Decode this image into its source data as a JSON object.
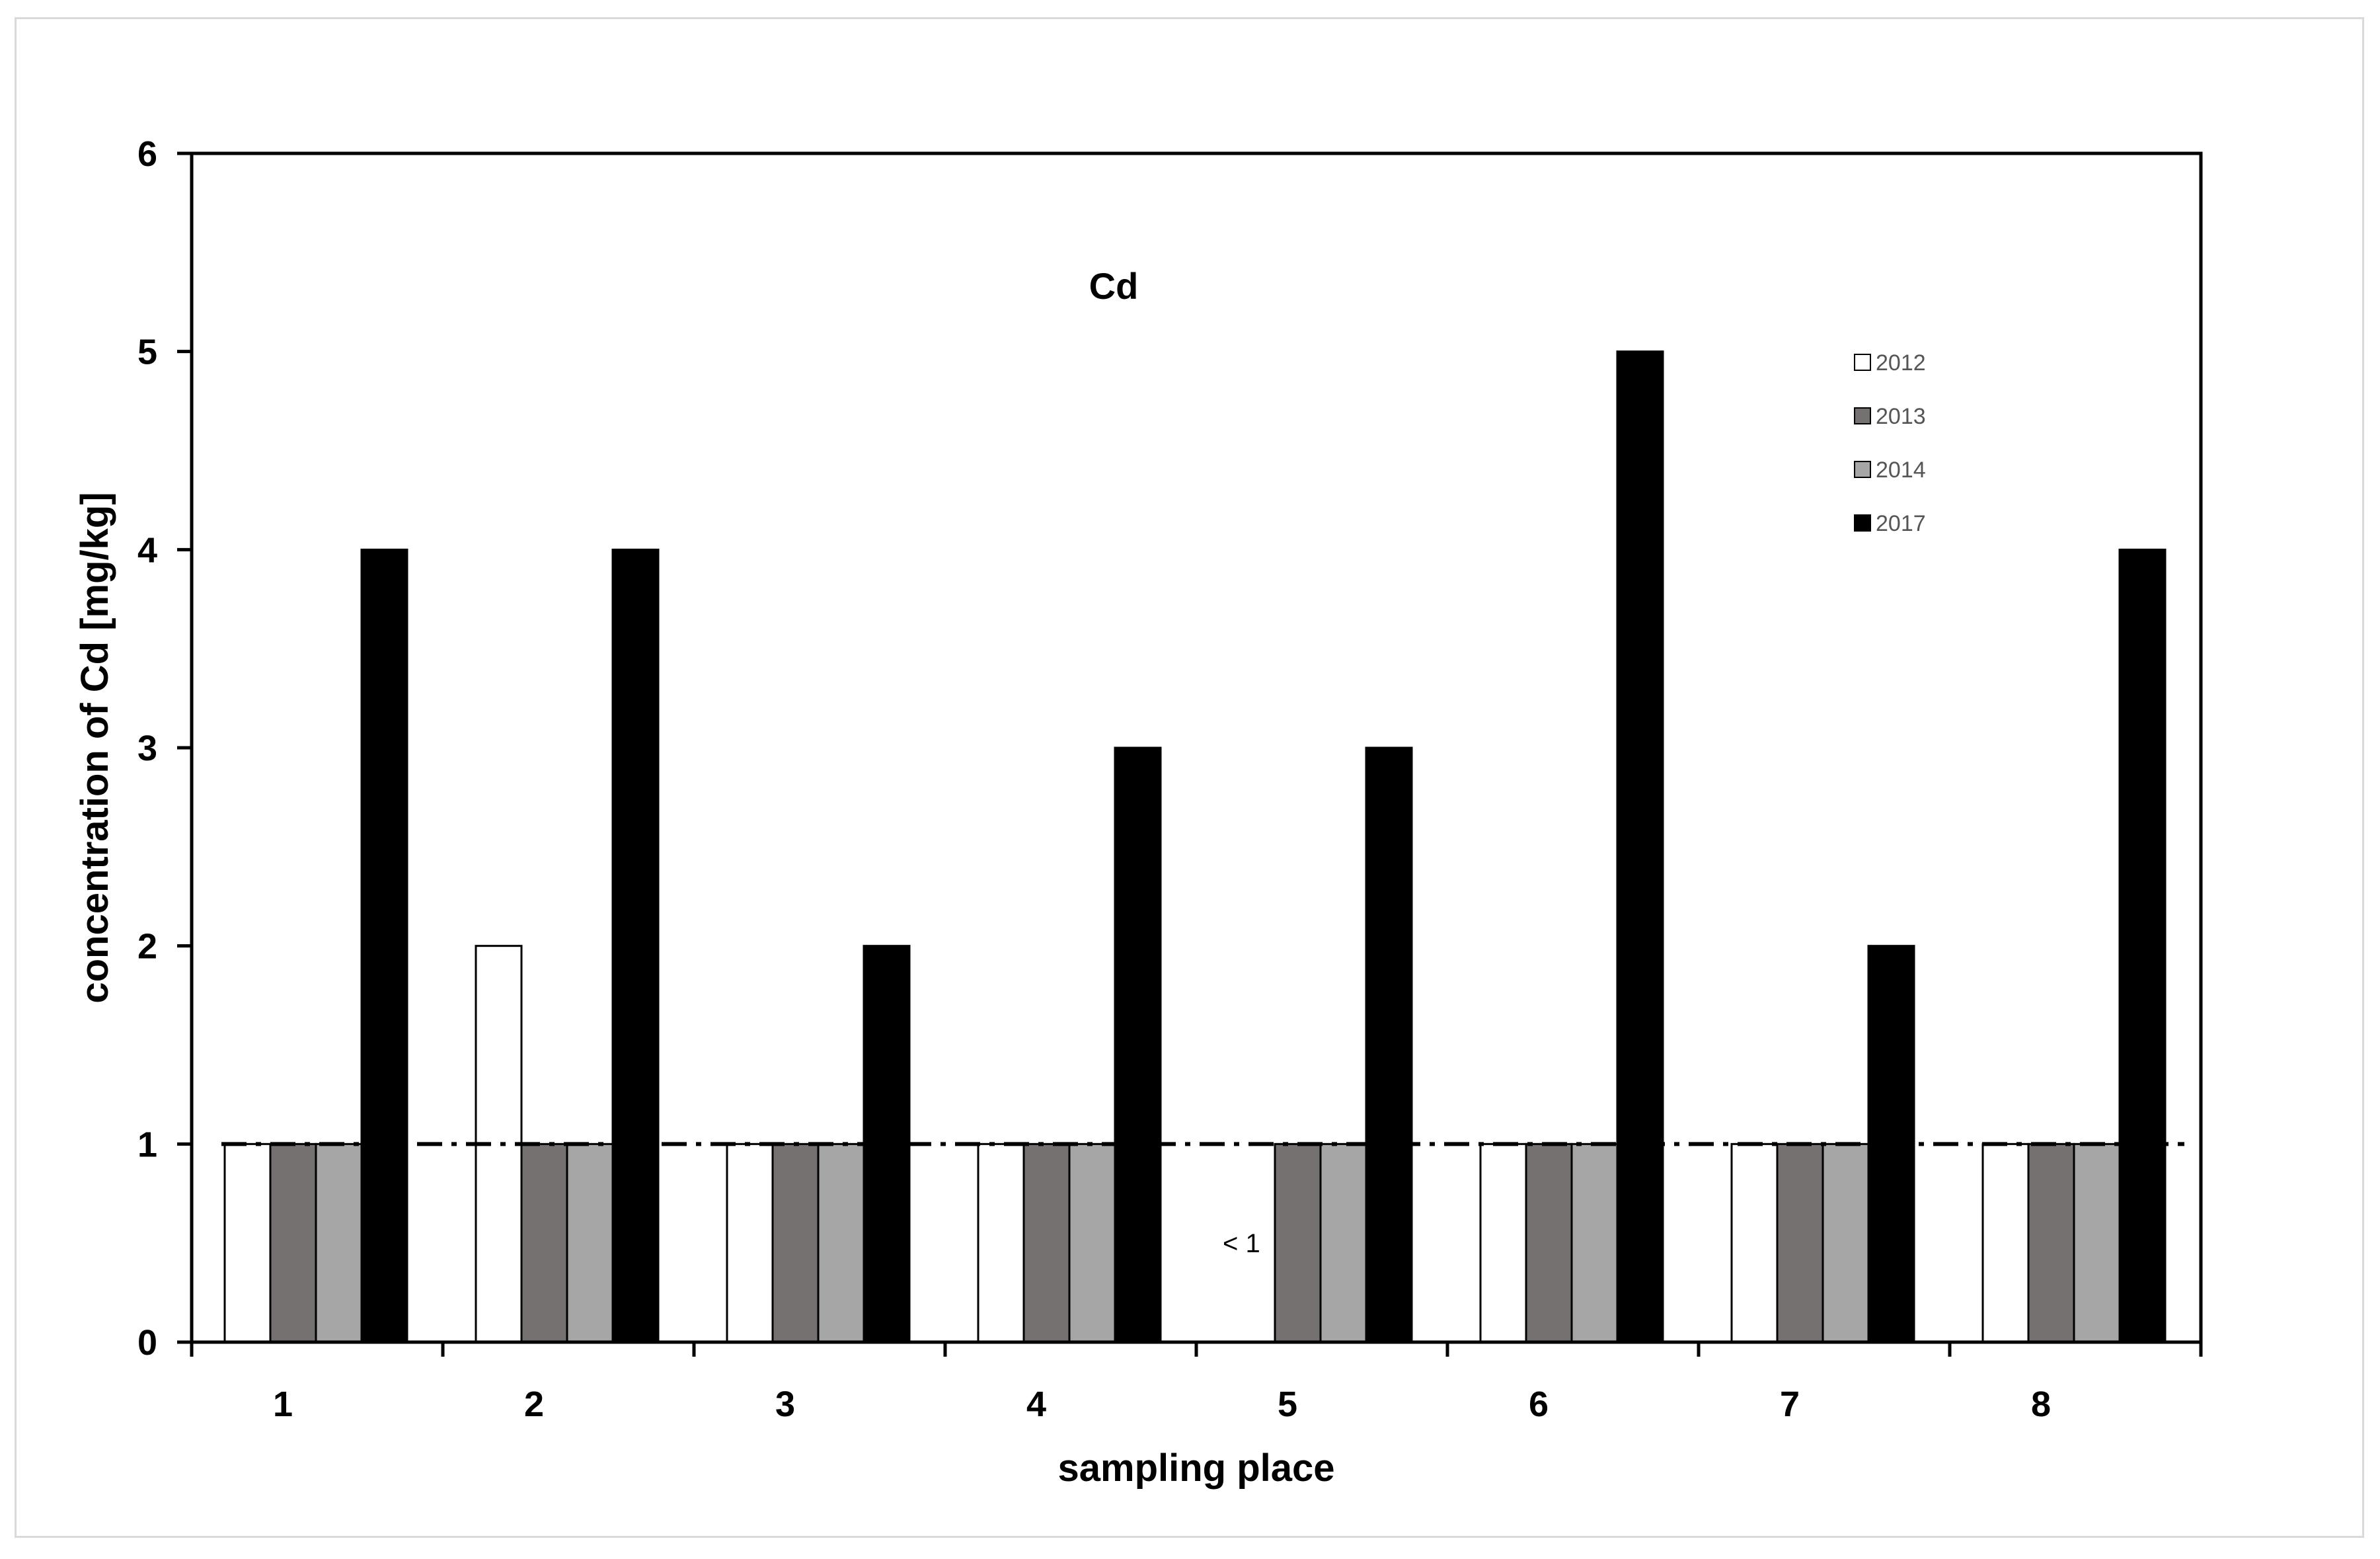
{
  "chart_data": {
    "type": "bar",
    "title": "Cd",
    "xlabel": "sampling place",
    "ylabel": "concentration of Cd [mg/kg]",
    "categories": [
      "1",
      "2",
      "3",
      "4",
      "5",
      "6",
      "7",
      "8"
    ],
    "ylim": [
      0,
      6
    ],
    "yticks": [
      0,
      1,
      2,
      3,
      4,
      5,
      6
    ],
    "grid": false,
    "legend_position": "top-right",
    "series": [
      {
        "name": "2012",
        "color": "#ffffff",
        "values": [
          1,
          2,
          1,
          1,
          null,
          1,
          1,
          1
        ]
      },
      {
        "name": "2013",
        "color": "#767171",
        "values": [
          1,
          1,
          1,
          1,
          1,
          1,
          1,
          1
        ]
      },
      {
        "name": "2014",
        "color": "#a6a6a6",
        "values": [
          1,
          1,
          1,
          1,
          1,
          1,
          1,
          1
        ]
      },
      {
        "name": "2017",
        "color": "#000000",
        "values": [
          4,
          4,
          2,
          3,
          3,
          5,
          2,
          4
        ]
      }
    ],
    "reference_line": {
      "value": 1,
      "style": "dash-dot"
    },
    "annotations": [
      {
        "text": "< 1",
        "category": "5",
        "y": 0.5
      }
    ]
  }
}
